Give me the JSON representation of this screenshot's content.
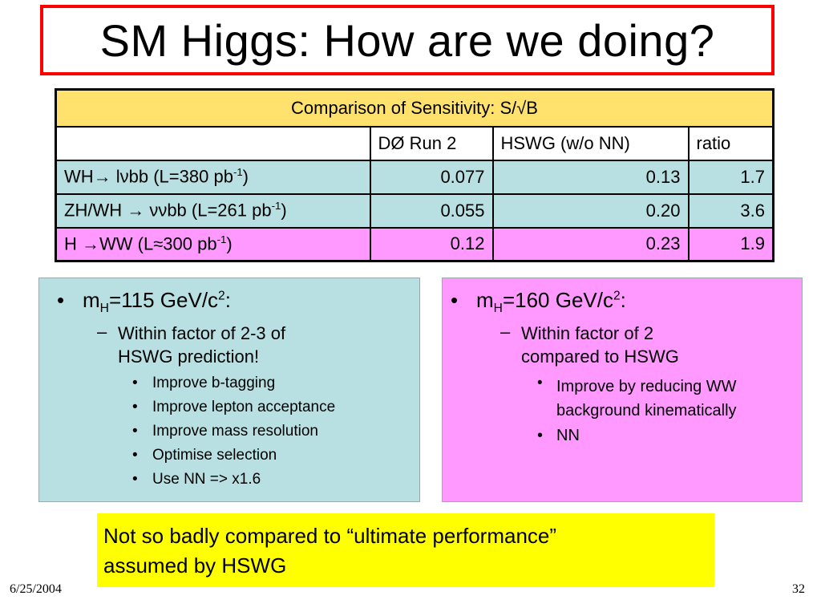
{
  "title": "SM Higgs: How are we doing?",
  "table": {
    "caption": "Comparison of Sensitivity: S/√B",
    "columns": [
      "",
      "DØ Run 2",
      "HSWG (w/o NN)",
      "ratio"
    ],
    "rows": [
      {
        "ch_pre": "WH→ lνbb (L=380 pb",
        "ch_sup": "-1",
        "ch_post": ")",
        "d0": "0.077",
        "hswg": "0.13",
        "ratio": "1.7"
      },
      {
        "ch_pre": "ZH/WH → ννbb (L=261 pb",
        "ch_sup": "-1",
        "ch_post": ")",
        "d0": "0.055",
        "hswg": "0.20",
        "ratio": "3.6"
      },
      {
        "ch_pre": "H →WW (L≈300 pb",
        "ch_sup": "-1",
        "ch_post": ")",
        "d0": "0.12",
        "hswg": "0.23",
        "ratio": "1.9"
      }
    ]
  },
  "left_panel": {
    "head_pre": "m",
    "head_sub": "H",
    "head_mid": "=115 GeV/c",
    "head_sup": "2",
    "head_post": ":",
    "sub_line1": "Within factor of 2-3 of",
    "sub_line2": "HSWG prediction!",
    "items": [
      "Improve b-tagging",
      "Improve lepton acceptance",
      "Improve mass resolution",
      "Optimise selection",
      "Use NN => x1.6"
    ]
  },
  "right_panel": {
    "head_pre": "m",
    "head_sub": "H",
    "head_mid": "=160 GeV/c",
    "head_sup": "2",
    "head_post": ":",
    "sub_line1": "Within factor of 2",
    "sub_line2": "compared to HSWG",
    "item1_line1": "Improve by reducing WW",
    "item1_line2": "background kinematically",
    "item2": "NN"
  },
  "note": {
    "line1": "Not so badly compared to “ultimate performance”",
    "line2": "assumed by HSWG"
  },
  "footer": {
    "date": "6/25/2004",
    "page": "32"
  },
  "symbols": {
    "bullet": "•",
    "dash": "–"
  },
  "colors": {
    "title_border": "#ff0000",
    "table_header": "#ffe26e",
    "teal": "#b8e0e2",
    "pink": "#ff99ff",
    "note": "#ffff00"
  }
}
